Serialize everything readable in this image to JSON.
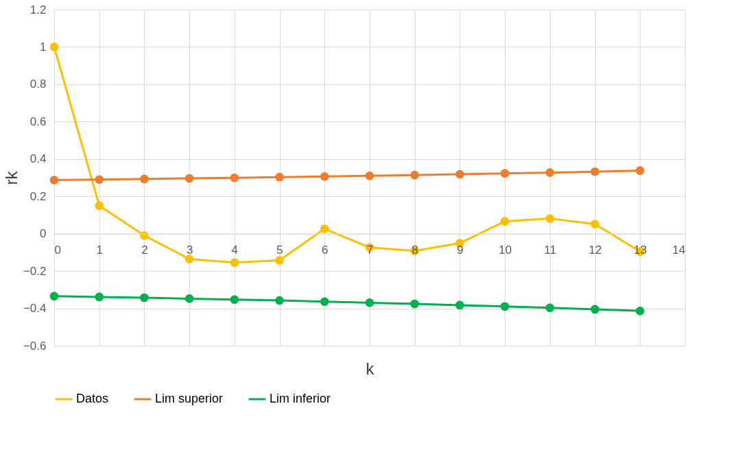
{
  "chart_data": {
    "type": "line",
    "xlabel": "k",
    "ylabel": "rk",
    "x": [
      0,
      1,
      2,
      3,
      4,
      5,
      6,
      7,
      8,
      9,
      10,
      11,
      12,
      13
    ],
    "series": [
      {
        "name": "Datos",
        "color": "#ffc000",
        "values": [
          1,
          0.15,
          -0.01,
          -0.136,
          -0.155,
          -0.143,
          0.026,
          -0.074,
          -0.092,
          -0.051,
          0.066,
          0.081,
          0.051,
          -0.096
        ]
      },
      {
        "name": "Lim superior",
        "color": "#ed7d31",
        "values": [
          0.287,
          0.29,
          0.293,
          0.296,
          0.299,
          0.303,
          0.306,
          0.31,
          0.314,
          0.318,
          0.323,
          0.327,
          0.332,
          0.338
        ]
      },
      {
        "name": "Lim inferior",
        "color": "#00b050",
        "values": [
          -0.335,
          -0.339,
          -0.343,
          -0.348,
          -0.353,
          -0.358,
          -0.364,
          -0.37,
          -0.376,
          -0.383,
          -0.39,
          -0.397,
          -0.405,
          -0.414
        ]
      }
    ],
    "xlim": [
      0,
      14
    ],
    "xticks": [
      0,
      1,
      2,
      3,
      4,
      5,
      6,
      7,
      8,
      9,
      10,
      11,
      12,
      13,
      14
    ],
    "ylim": [
      -0.6,
      1.2
    ],
    "yticks": [
      -0.6,
      -0.4,
      -0.2,
      0,
      0.2,
      0.4,
      0.6,
      0.8,
      1,
      1.2
    ],
    "grid": true,
    "legend": "bottom",
    "marker": "circle",
    "line_style": "solid"
  }
}
